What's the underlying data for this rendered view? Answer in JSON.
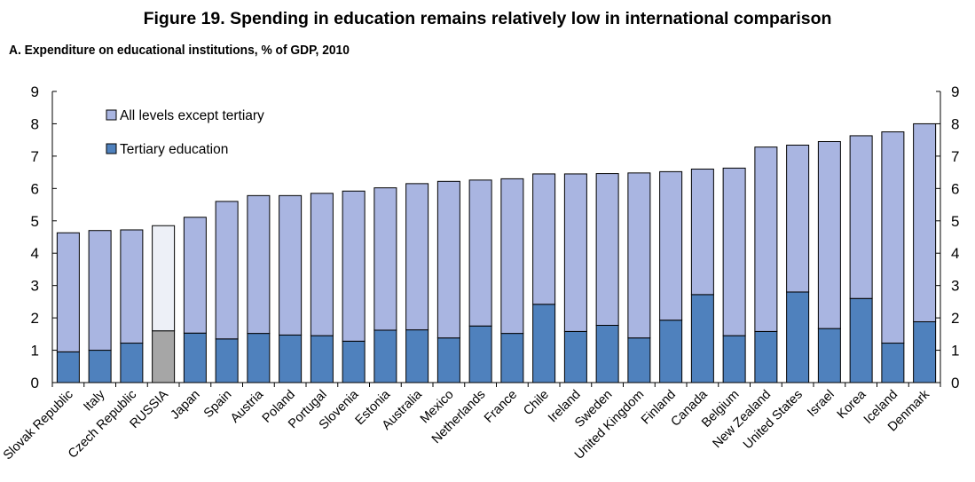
{
  "figure_title": "Figure 19. Spending in education remains relatively low in international comparison",
  "panel_title": "A. Expenditure on educational institutions, % of GDP, 2010",
  "colors": {
    "all_levels": "#a9b5e1",
    "tertiary": "#4f81bd",
    "highlight_all_levels": "#edf0f7",
    "highlight_tertiary": "#a6a6a6",
    "bar_outline": "#000000"
  },
  "chart_data": {
    "type": "bar",
    "stacked": true,
    "categories": [
      "Slovak Republic",
      "Italy",
      "Czech Republic",
      "RUSSIA",
      "Japan",
      "Spain",
      "Austria",
      "Poland",
      "Portugal",
      "Slovenia",
      "Estonia",
      "Australia",
      "Mexico",
      "Netherlands",
      "France",
      "Chile",
      "Ireland",
      "Sweden",
      "United Kingdom",
      "Finland",
      "Canada",
      "Belgium",
      "New Zealand",
      "United States",
      "Israel",
      "Korea",
      "Iceland",
      "Denmark"
    ],
    "highlight_category": "RUSSIA",
    "series": [
      {
        "name": "Tertiary education",
        "values": [
          0.95,
          1.0,
          1.22,
          1.6,
          1.53,
          1.35,
          1.52,
          1.47,
          1.45,
          1.28,
          1.62,
          1.63,
          1.38,
          1.75,
          1.52,
          2.42,
          1.58,
          1.77,
          1.38,
          1.93,
          2.72,
          1.45,
          1.58,
          2.8,
          1.67,
          2.6,
          1.22,
          1.88
        ]
      },
      {
        "name": "All levels except tertiary",
        "values": [
          3.68,
          3.7,
          3.5,
          3.25,
          3.58,
          4.25,
          4.26,
          4.31,
          4.4,
          4.64,
          4.4,
          4.52,
          4.84,
          4.51,
          4.78,
          4.03,
          4.87,
          4.69,
          5.1,
          4.59,
          3.88,
          5.18,
          5.7,
          4.54,
          5.78,
          5.03,
          6.53,
          6.12
        ]
      }
    ],
    "legend": [
      "All levels except tertiary",
      "Tertiary education"
    ],
    "legend_position": "top-left",
    "ylim": [
      0,
      9
    ],
    "yticks": [
      0,
      1,
      2,
      3,
      4,
      5,
      6,
      7,
      8,
      9
    ],
    "secondary_y_axis": true,
    "grid": false,
    "xlabel": "",
    "ylabel": ""
  }
}
